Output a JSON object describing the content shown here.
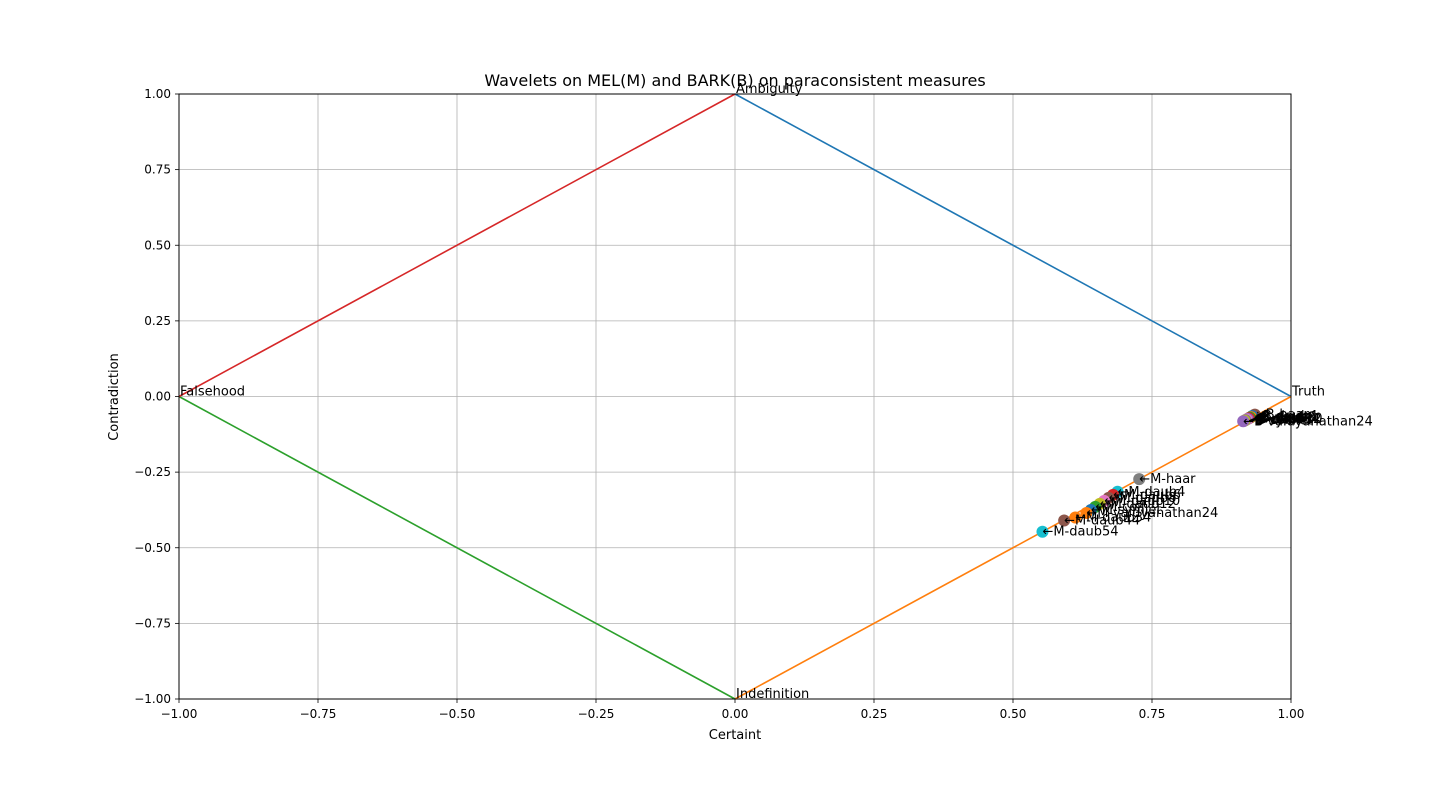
{
  "chart_data": {
    "type": "scatter",
    "title": "Wavelets on MEL(M) and BARK(B) on paraconsistent measures",
    "xlabel": "Certaint",
    "ylabel": "Contradiction",
    "xlim": [
      -1.0,
      1.0
    ],
    "ylim": [
      -1.0,
      1.0
    ],
    "grid": true,
    "x_ticks": [
      "−1.00",
      "−0.75",
      "−0.50",
      "−0.25",
      "0.00",
      "0.25",
      "0.50",
      "0.75",
      "1.00"
    ],
    "y_ticks": [
      "1.00",
      "0.75",
      "0.50",
      "0.25",
      "0.00",
      "−0.25",
      "−0.50",
      "−0.75",
      "−1.00"
    ],
    "corner_labels": [
      {
        "text": "Truth",
        "x": 1.0,
        "y": 0.0
      },
      {
        "text": "Ambiguity",
        "x": 0.0,
        "y": 1.0
      },
      {
        "text": "Falsehood",
        "x": -1.0,
        "y": 0.0
      },
      {
        "text": "Indefinition",
        "x": 0.0,
        "y": -1.0
      }
    ],
    "boundary_lines": [
      {
        "from": [
          0.0,
          1.0
        ],
        "to": [
          1.0,
          0.0
        ],
        "color": "#1f77b4"
      },
      {
        "from": [
          1.0,
          0.0
        ],
        "to": [
          0.0,
          -1.0
        ],
        "color": "#ff7f0e"
      },
      {
        "from": [
          -1.0,
          0.0
        ],
        "to": [
          0.0,
          -1.0
        ],
        "color": "#2ca02c"
      },
      {
        "from": [
          -1.0,
          0.0
        ],
        "to": [
          0.0,
          1.0
        ],
        "color": "#d62728"
      }
    ],
    "points": [
      {
        "label": "←B-haar",
        "x": 0.935,
        "y": -0.06,
        "color": "#8c564b"
      },
      {
        "label": "←B-daub4",
        "x": 0.93,
        "y": -0.065,
        "color": "#1f77b4"
      },
      {
        "label": "←B-daub6",
        "x": 0.928,
        "y": -0.068,
        "color": "#ff7f0e"
      },
      {
        "label": "←B-daub8",
        "x": 0.926,
        "y": -0.07,
        "color": "#2ca02c"
      },
      {
        "label": "←B-daub10",
        "x": 0.924,
        "y": -0.072,
        "color": "#d62728"
      },
      {
        "label": "←B-daub12",
        "x": 0.922,
        "y": -0.074,
        "color": "#9467bd"
      },
      {
        "label": "←B-daub54",
        "x": 0.92,
        "y": -0.076,
        "color": "#e377c2"
      },
      {
        "label": "←B-coif",
        "x": 0.918,
        "y": -0.078,
        "color": "#7f7f7f"
      },
      {
        "label": "←B-symlet",
        "x": 0.916,
        "y": -0.08,
        "color": "#bcbd22"
      },
      {
        "label": "←B-vaidyanathan24",
        "x": 0.914,
        "y": -0.082,
        "color": "#9467bd"
      },
      {
        "label": "←M-haar",
        "x": 0.727,
        "y": -0.273,
        "color": "#7f7f7f"
      },
      {
        "label": "←M-daub4",
        "x": 0.688,
        "y": -0.315,
        "color": "#17becf"
      },
      {
        "label": "←M-daub6",
        "x": 0.68,
        "y": -0.325,
        "color": "#d62728"
      },
      {
        "label": "←M-daub8",
        "x": 0.672,
        "y": -0.335,
        "color": "#8c564b"
      },
      {
        "label": "←M-daub10",
        "x": 0.664,
        "y": -0.345,
        "color": "#e377c2"
      },
      {
        "label": "←M-daub12",
        "x": 0.656,
        "y": -0.355,
        "color": "#bcbd22"
      },
      {
        "label": "←M-coif",
        "x": 0.648,
        "y": -0.365,
        "color": "#2ca02c"
      },
      {
        "label": "←M-symlet",
        "x": 0.64,
        "y": -0.375,
        "color": "#1f77b4"
      },
      {
        "label": "←M-vaidyanathan24",
        "x": 0.632,
        "y": -0.385,
        "color": "#ff7f0e"
      },
      {
        "label": "←M-daub34",
        "x": 0.612,
        "y": -0.4,
        "color": "#ff7f0e"
      },
      {
        "label": "←M-daub44",
        "x": 0.592,
        "y": -0.41,
        "color": "#8c564b"
      },
      {
        "label": "←M-daub54",
        "x": 0.553,
        "y": -0.447,
        "color": "#17becf"
      }
    ]
  }
}
